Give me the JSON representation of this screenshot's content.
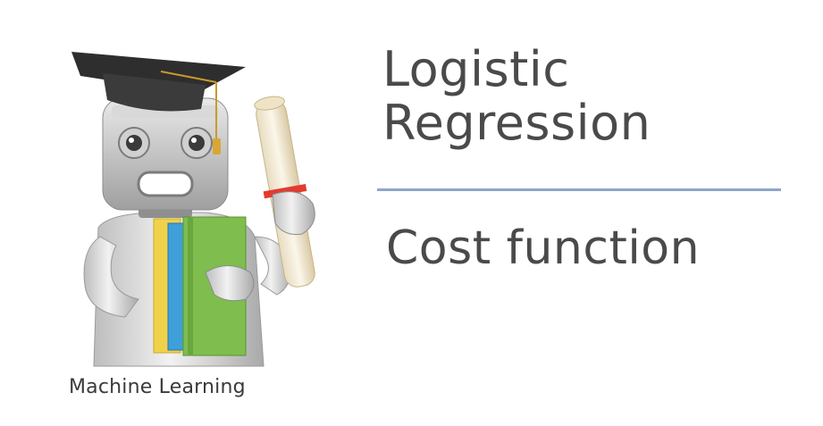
{
  "slide": {
    "title_lines": [
      "Logistic",
      "Regression"
    ],
    "subtitle": "Cost function",
    "caption": "Machine Learning",
    "divider_color": "#8ea6c9",
    "text_color": "#4a4a4a"
  },
  "illustration": {
    "icon": "graduate-robot-icon"
  }
}
